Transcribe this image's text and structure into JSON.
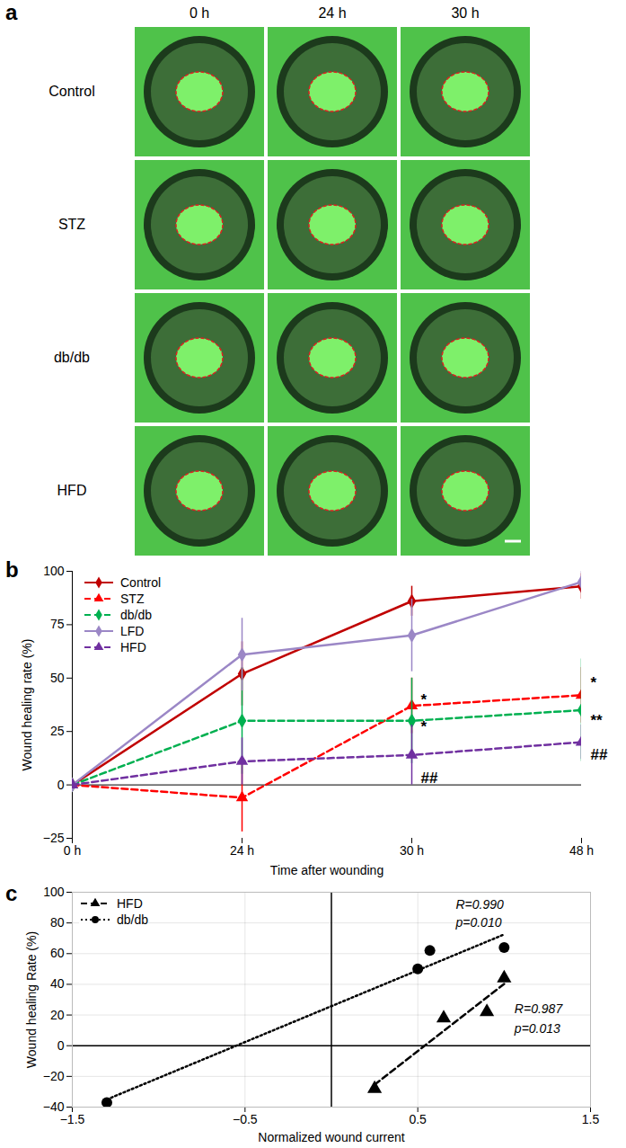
{
  "panel_a": {
    "panel": "a",
    "columns": [
      "0 h",
      "24 h",
      "30 h"
    ],
    "rows": [
      "Control",
      "STZ",
      "db/db",
      "HFD"
    ]
  },
  "chart_data": [
    {
      "panel": "b",
      "type": "line",
      "x": [
        "0 h",
        "24 h",
        "30 h",
        "48 h"
      ],
      "xlabel": "Time after wounding",
      "ylabel": "Wound healing rate (%)",
      "ylim": [
        -25,
        100
      ],
      "yticks": [
        -25,
        0,
        25,
        50,
        75,
        100
      ],
      "grid": false,
      "legend": "top-left",
      "series": [
        {
          "name": "Control",
          "color": "#c00000",
          "marker": "diamond",
          "line_style": "solid",
          "values": [
            0,
            52,
            86,
            93
          ],
          "error": [
            0,
            15,
            7,
            6
          ]
        },
        {
          "name": "STZ",
          "color": "#ff0000",
          "marker": "triangle",
          "line_style": "dashed",
          "values": [
            0,
            -6,
            37,
            42
          ],
          "error": [
            0,
            16,
            13,
            13
          ]
        },
        {
          "name": "db/db",
          "color": "#00b050",
          "marker": "diamond",
          "line_style": "dashed",
          "values": [
            0,
            30,
            30,
            35
          ],
          "error": [
            0,
            25,
            20,
            24
          ]
        },
        {
          "name": "LFD",
          "color": "#9b87c6",
          "marker": "diamond",
          "line_style": "solid",
          "values": [
            0,
            61,
            70,
            95
          ],
          "error": [
            0,
            17,
            17,
            5
          ]
        },
        {
          "name": "HFD",
          "color": "#7030a0",
          "marker": "triangle",
          "line_style": "dashed",
          "values": [
            0,
            11,
            14,
            20
          ],
          "error": [
            0,
            11,
            14,
            8
          ]
        }
      ],
      "annotations": [
        {
          "text": "*",
          "x": "30 h",
          "y": 40
        },
        {
          "text": "*",
          "x": "30 h",
          "y": 27
        },
        {
          "text": "##",
          "x": "30 h",
          "y": 3
        },
        {
          "text": "*",
          "x": "48 h",
          "y": 48
        },
        {
          "text": "**",
          "x": "48 h",
          "y": 30
        },
        {
          "text": "##",
          "x": "48 h",
          "y": 14
        }
      ]
    },
    {
      "panel": "c",
      "type": "scatter",
      "xlabel": "Normalized wound current",
      "ylabel": "Wound healing Rate (%)",
      "xlim": [
        -1.5,
        1.5
      ],
      "xticks": [
        -1.5,
        -0.5,
        0.5,
        1.5
      ],
      "ylim": [
        -40,
        100
      ],
      "yticks": [
        -40,
        -20,
        0,
        20,
        40,
        60,
        80,
        100
      ],
      "grid": true,
      "legend": "top-left",
      "series": [
        {
          "name": "HFD",
          "color": "#000000",
          "marker": "triangle",
          "line_style": "dashed",
          "x": [
            0.25,
            0.65,
            0.9,
            1.0
          ],
          "values": [
            -28,
            18,
            22,
            44
          ]
        },
        {
          "name": "db/db",
          "color": "#000000",
          "marker": "circle",
          "line_style": "dotted",
          "x": [
            -1.3,
            0.5,
            0.57,
            1.0
          ],
          "values": [
            -37,
            50,
            62,
            64
          ]
        }
      ],
      "annotations": [
        {
          "text": "R=0.990",
          "x": 0.72,
          "y": 92
        },
        {
          "text": "p=0.010",
          "x": 0.72,
          "y": 80
        },
        {
          "text": "R=0.987",
          "x": 1.06,
          "y": 24
        },
        {
          "text": "p=0.013",
          "x": 1.06,
          "y": 11
        }
      ]
    }
  ]
}
